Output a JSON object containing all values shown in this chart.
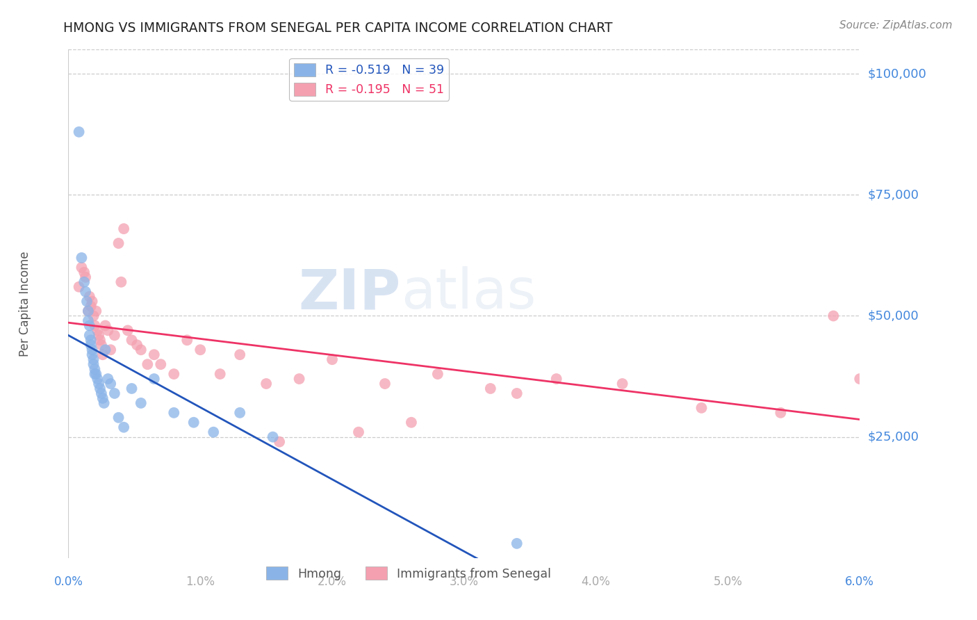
{
  "title": "HMONG VS IMMIGRANTS FROM SENEGAL PER CAPITA INCOME CORRELATION CHART",
  "source": "Source: ZipAtlas.com",
  "ylabel": "Per Capita Income",
  "ytick_labels": [
    "$25,000",
    "$50,000",
    "$75,000",
    "$100,000"
  ],
  "ytick_values": [
    25000,
    50000,
    75000,
    100000
  ],
  "xmin": 0.0,
  "xmax": 0.06,
  "ymin": 0,
  "ymax": 105000,
  "watermark_zip": "ZIP",
  "watermark_atlas": "atlas",
  "legend_label_hmong": "Hmong",
  "legend_label_senegal": "Immigrants from Senegal",
  "legend_r_hmong": "R = -0.519",
  "legend_n_hmong": "N = 39",
  "legend_r_senegal": "R = -0.195",
  "legend_n_senegal": "N = 51",
  "hmong_color": "#8ab4e8",
  "senegal_color": "#f4a0b0",
  "hmong_line_color": "#2255bb",
  "senegal_line_color": "#ee3366",
  "title_color": "#222222",
  "axis_label_color": "#4488dd",
  "axis_tick_color": "#aaaaaa",
  "grid_color": "#cccccc",
  "background_color": "#ffffff",
  "hmong_x": [
    0.0008,
    0.001,
    0.0012,
    0.0013,
    0.0014,
    0.0015,
    0.0015,
    0.0016,
    0.0016,
    0.0017,
    0.0017,
    0.0018,
    0.0018,
    0.0019,
    0.0019,
    0.002,
    0.002,
    0.0021,
    0.0022,
    0.0023,
    0.0024,
    0.0025,
    0.0026,
    0.0027,
    0.0028,
    0.003,
    0.0032,
    0.0035,
    0.0038,
    0.0042,
    0.0048,
    0.0055,
    0.0065,
    0.008,
    0.0095,
    0.011,
    0.013,
    0.0155,
    0.034
  ],
  "hmong_y": [
    88000,
    62000,
    57000,
    55000,
    53000,
    51000,
    49000,
    48000,
    46000,
    45000,
    44000,
    43000,
    42000,
    41000,
    40000,
    39000,
    38000,
    38000,
    37000,
    36000,
    35000,
    34000,
    33000,
    32000,
    43000,
    37000,
    36000,
    34000,
    29000,
    27000,
    35000,
    32000,
    37000,
    30000,
    28000,
    26000,
    30000,
    25000,
    3000
  ],
  "senegal_x": [
    0.0008,
    0.001,
    0.0012,
    0.0013,
    0.0015,
    0.0016,
    0.0017,
    0.0018,
    0.0019,
    0.002,
    0.0021,
    0.0022,
    0.0023,
    0.0024,
    0.0025,
    0.0026,
    0.0028,
    0.003,
    0.0032,
    0.0035,
    0.0038,
    0.004,
    0.0042,
    0.0045,
    0.0048,
    0.0052,
    0.0055,
    0.006,
    0.0065,
    0.007,
    0.008,
    0.009,
    0.01,
    0.0115,
    0.013,
    0.015,
    0.0175,
    0.02,
    0.024,
    0.028,
    0.032,
    0.037,
    0.042,
    0.048,
    0.054,
    0.06,
    0.034,
    0.026,
    0.022,
    0.016,
    0.058
  ],
  "senegal_y": [
    56000,
    60000,
    59000,
    58000,
    51000,
    54000,
    52000,
    53000,
    50000,
    48000,
    51000,
    47000,
    46000,
    45000,
    44000,
    42000,
    48000,
    47000,
    43000,
    46000,
    65000,
    57000,
    68000,
    47000,
    45000,
    44000,
    43000,
    40000,
    42000,
    40000,
    38000,
    45000,
    43000,
    38000,
    42000,
    36000,
    37000,
    41000,
    36000,
    38000,
    35000,
    37000,
    36000,
    31000,
    30000,
    37000,
    34000,
    28000,
    26000,
    24000,
    50000
  ]
}
